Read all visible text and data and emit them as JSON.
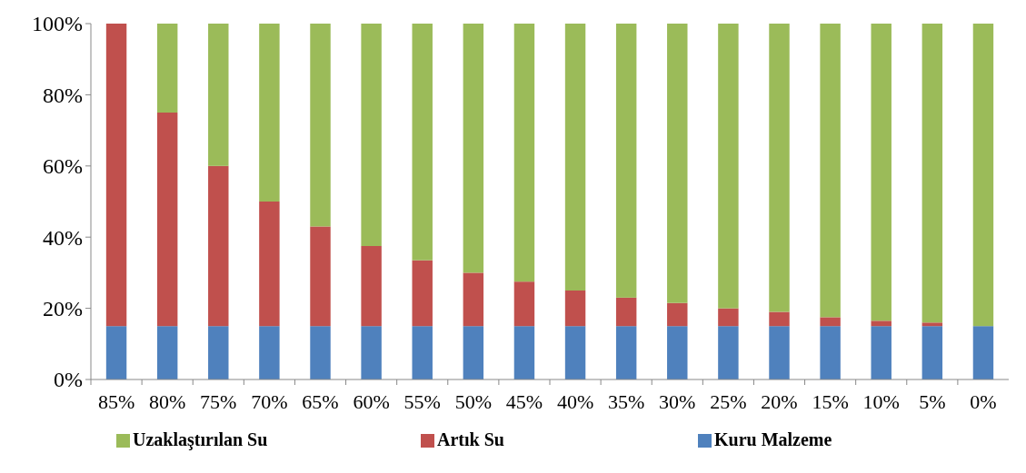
{
  "chart_data": {
    "type": "bar",
    "stacked": true,
    "categories": [
      "85%",
      "80%",
      "75%",
      "70%",
      "65%",
      "60%",
      "55%",
      "50%",
      "45%",
      "40%",
      "35%",
      "30%",
      "25%",
      "20%",
      "15%",
      "10%",
      "5%",
      "0%"
    ],
    "series": [
      {
        "name": "Kuru Malzeme",
        "color": "#4f81bd",
        "values": [
          15,
          15,
          15,
          15,
          15,
          15,
          15,
          15,
          15,
          15,
          15,
          15,
          15,
          15,
          15,
          15,
          15,
          15
        ]
      },
      {
        "name": "Artık Su",
        "color": "#c0504d",
        "values": [
          85,
          60,
          45,
          35,
          28,
          22.5,
          18.5,
          15,
          12.5,
          10,
          8,
          6.5,
          5,
          4,
          2.5,
          1.5,
          1,
          0
        ]
      },
      {
        "name": "Uzaklaştırılan Su",
        "color": "#9bbb59",
        "values": [
          0,
          25,
          40,
          50,
          57,
          62.5,
          66.5,
          70,
          72.5,
          75,
          77,
          78.5,
          80,
          81,
          82.5,
          83.5,
          84,
          85
        ]
      }
    ],
    "ylim": [
      0,
      100
    ],
    "yticks": [
      {
        "value": 0,
        "label": "0%"
      },
      {
        "value": 20,
        "label": "20%"
      },
      {
        "value": 40,
        "label": "40%"
      },
      {
        "value": 60,
        "label": "60%"
      },
      {
        "value": 80,
        "label": "80%"
      },
      {
        "value": 100,
        "label": "100%"
      }
    ],
    "legend": "bottom"
  }
}
